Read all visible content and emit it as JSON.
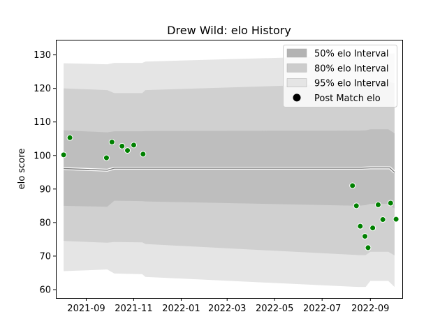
{
  "chart_data": {
    "type": "area",
    "title": "Drew Wild: elo History",
    "xlabel": "",
    "ylabel": "elo score",
    "xlim": [
      "2021-07-24",
      "2022-10-12"
    ],
    "ylim": [
      57.5,
      134.5
    ],
    "x_ticks": [
      "2021-09",
      "2021-11",
      "2022-01",
      "2022-03",
      "2022-05",
      "2022-07",
      "2022-09"
    ],
    "y_ticks": [
      60,
      70,
      80,
      90,
      100,
      110,
      120,
      130
    ],
    "grid": false,
    "legend_position": "top-right",
    "legend": [
      {
        "label": "50% elo Interval",
        "kind": "band",
        "color": "#b3b3b3"
      },
      {
        "label": "80% elo Interval",
        "kind": "band",
        "color": "#cccccc"
      },
      {
        "label": "95% elo Interval",
        "kind": "band",
        "color": "#e5e5e5"
      },
      {
        "label": "Post Match elo",
        "kind": "marker",
        "color": "#000000"
      }
    ],
    "colors": {
      "band_95": "#e5e5e5",
      "band_80": "#d0d0d0",
      "band_50": "#bebebe",
      "mean_line": "#808080",
      "mean_halo": "#ffffff",
      "marker_fill": "#008000",
      "marker_edge": "#ffffff"
    },
    "mean_line": {
      "x": [
        "2021-08-03",
        "2021-09-28",
        "2021-10-07",
        "2021-11-12",
        "2022-08-21",
        "2022-09-01",
        "2022-09-26",
        "2022-10-02"
      ],
      "y": [
        96.1,
        95.6,
        96.2,
        96.2,
        96.2,
        96.3,
        96.3,
        95.0
      ]
    },
    "band_x": [
      "2021-08-03",
      "2021-09-28",
      "2021-10-07",
      "2021-11-12",
      "2021-11-16",
      "2022-08-16",
      "2022-08-26",
      "2022-09-01",
      "2022-09-24",
      "2022-10-02"
    ],
    "series": [
      {
        "name": "95% elo Interval",
        "upper": [
          127.5,
          127.2,
          127.6,
          127.6,
          128.0,
          129.8,
          130.0,
          130.2,
          130.3,
          130.5
        ],
        "lower": [
          65.5,
          66.0,
          64.8,
          64.6,
          63.8,
          60.8,
          60.8,
          62.6,
          62.6,
          60.8
        ]
      },
      {
        "name": "80% elo Interval",
        "upper": [
          120.0,
          119.5,
          118.6,
          118.6,
          119.5,
          121.5,
          121.8,
          122.0,
          122.0,
          121.5
        ],
        "lower": [
          74.5,
          74.0,
          74.2,
          74.1,
          73.6,
          70.3,
          70.3,
          71.3,
          71.3,
          70.2
        ]
      },
      {
        "name": "50% elo Interval",
        "upper": [
          107.5,
          106.9,
          107.2,
          107.2,
          107.3,
          107.4,
          107.5,
          107.8,
          107.8,
          106.6
        ],
        "lower": [
          85.0,
          84.7,
          86.5,
          86.4,
          86.3,
          85.0,
          85.2,
          85.6,
          85.6,
          84.2
        ]
      }
    ],
    "points": {
      "name": "Post Match elo",
      "x": [
        "2021-08-03",
        "2021-08-11",
        "2021-09-27",
        "2021-10-04",
        "2021-10-17",
        "2021-10-24",
        "2021-11-01",
        "2021-11-13",
        "2022-08-09",
        "2022-08-14",
        "2022-08-19",
        "2022-08-25",
        "2022-08-29",
        "2022-09-04",
        "2022-09-11",
        "2022-09-17",
        "2022-09-27",
        "2022-10-04"
      ],
      "y": [
        100.2,
        105.3,
        99.3,
        104.0,
        102.8,
        101.5,
        103.1,
        100.4,
        91.0,
        85.0,
        78.9,
        75.9,
        72.5,
        78.4,
        85.3,
        80.9,
        85.8,
        81.0
      ]
    }
  }
}
